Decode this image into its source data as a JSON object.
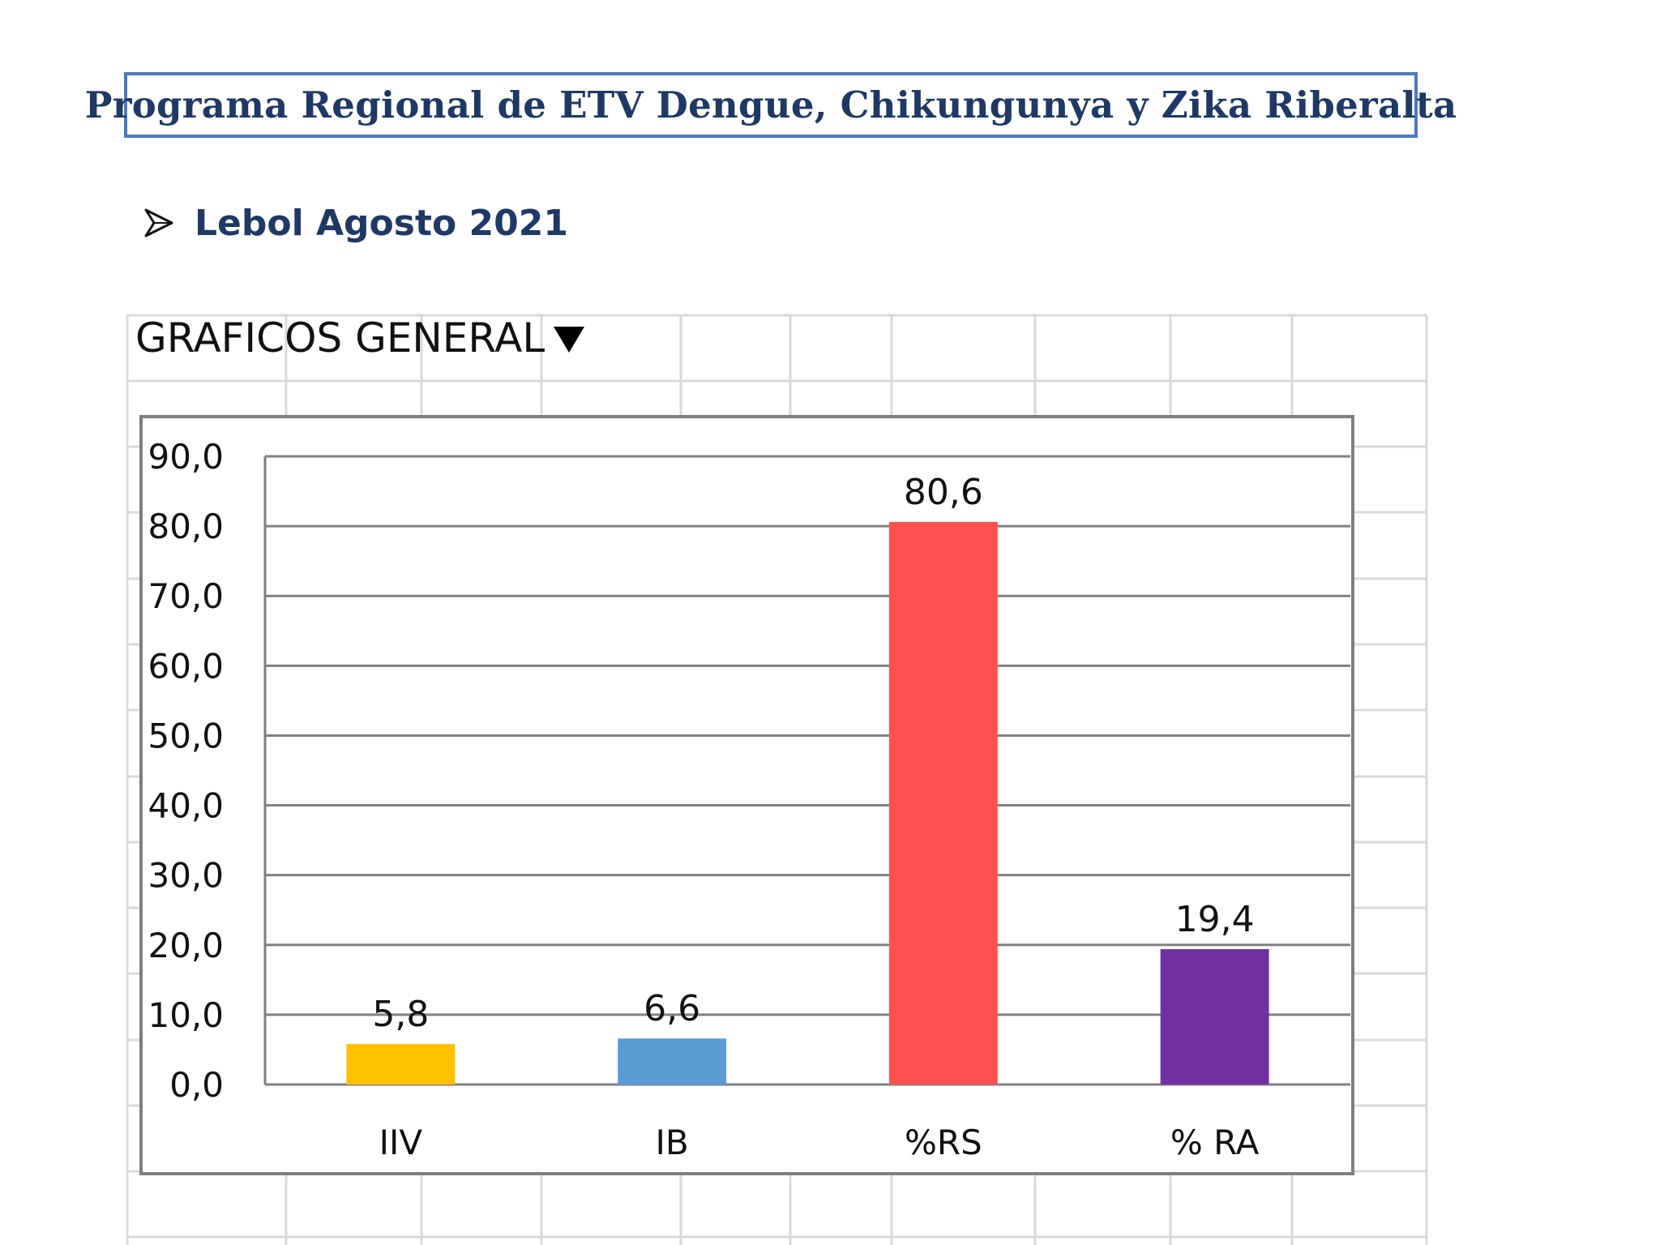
{
  "header": {
    "title": "Programa Regional de ETV Dengue, Chikungunya y Zika Riberalta",
    "subtitle": "Lebol Agosto 2021",
    "bullet_icon": "arrow-bullet-icon"
  },
  "sheet": {
    "label": "GRAFICOS GENERAL",
    "dropdown_icon": "triangle-down-icon"
  },
  "colors": {
    "title_border": "#4a7bc0",
    "title_text": "#1f3864",
    "gridline": "#808080"
  },
  "chart_data": {
    "type": "bar",
    "title": "",
    "xlabel": "",
    "ylabel": "",
    "categories": [
      "IIV",
      "IB",
      "%RS",
      "% RA"
    ],
    "values": [
      5.8,
      6.6,
      80.6,
      19.4
    ],
    "value_labels": [
      "5,8",
      "6,6",
      "80,6",
      "19,4"
    ],
    "colors": [
      "#ffc000",
      "#5b9bd5",
      "#ff5050",
      "#7030a0"
    ],
    "ylim": [
      0,
      90
    ],
    "yticks": [
      0,
      10,
      20,
      30,
      40,
      50,
      60,
      70,
      80,
      90
    ],
    "ytick_labels": [
      "0,0",
      "10,0",
      "20,0",
      "30,0",
      "40,0",
      "50,0",
      "60,0",
      "70,0",
      "80,0",
      "90,0"
    ],
    "grid": true,
    "legend": "none"
  }
}
